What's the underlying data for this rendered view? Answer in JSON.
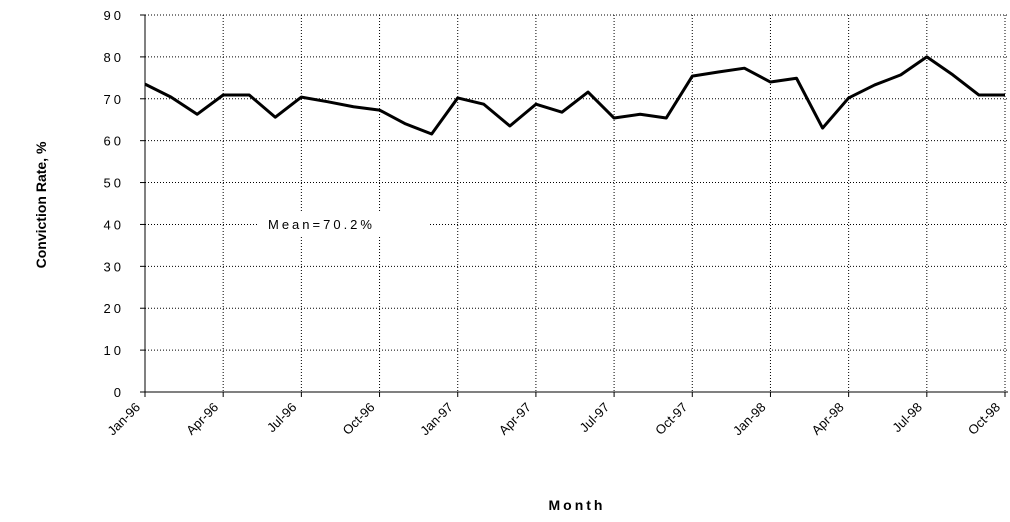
{
  "chart_data": {
    "type": "line",
    "x_label": "Month",
    "y_label": "Conviction Rate, %",
    "annotation": "Mean=70.2%",
    "categories": [
      "Jan-96",
      null,
      null,
      "Apr-96",
      null,
      null,
      "Jul-96",
      null,
      null,
      "Oct-96",
      null,
      null,
      "Jan-97",
      null,
      null,
      "Apr-97",
      null,
      null,
      "Jul-97",
      null,
      null,
      "Oct-97",
      null,
      null,
      "Jan-98",
      null,
      null,
      "Apr-98",
      null,
      null,
      "Jul-98",
      null,
      null,
      "Oct-98"
    ],
    "series": [
      {
        "name": "Conviction Rate",
        "color": "#000000",
        "values": [
          73.5,
          70.4,
          66.3,
          70.9,
          70.9,
          65.6,
          70.4,
          69.3,
          68.1,
          67.3,
          64,
          61.6,
          70.2,
          68.7,
          63.5,
          68.7,
          66.8,
          71.6,
          65.4,
          66.3,
          65.4,
          75.4,
          76.4,
          77.3,
          74,
          74.9,
          63,
          70.2,
          73.3,
          75.7,
          80,
          75.7,
          70.9,
          70.9
        ]
      }
    ],
    "ylim": [
      0,
      90
    ],
    "yticks": [
      0,
      10,
      20,
      30,
      40,
      50,
      60,
      70,
      80,
      90
    ],
    "grid": true
  }
}
